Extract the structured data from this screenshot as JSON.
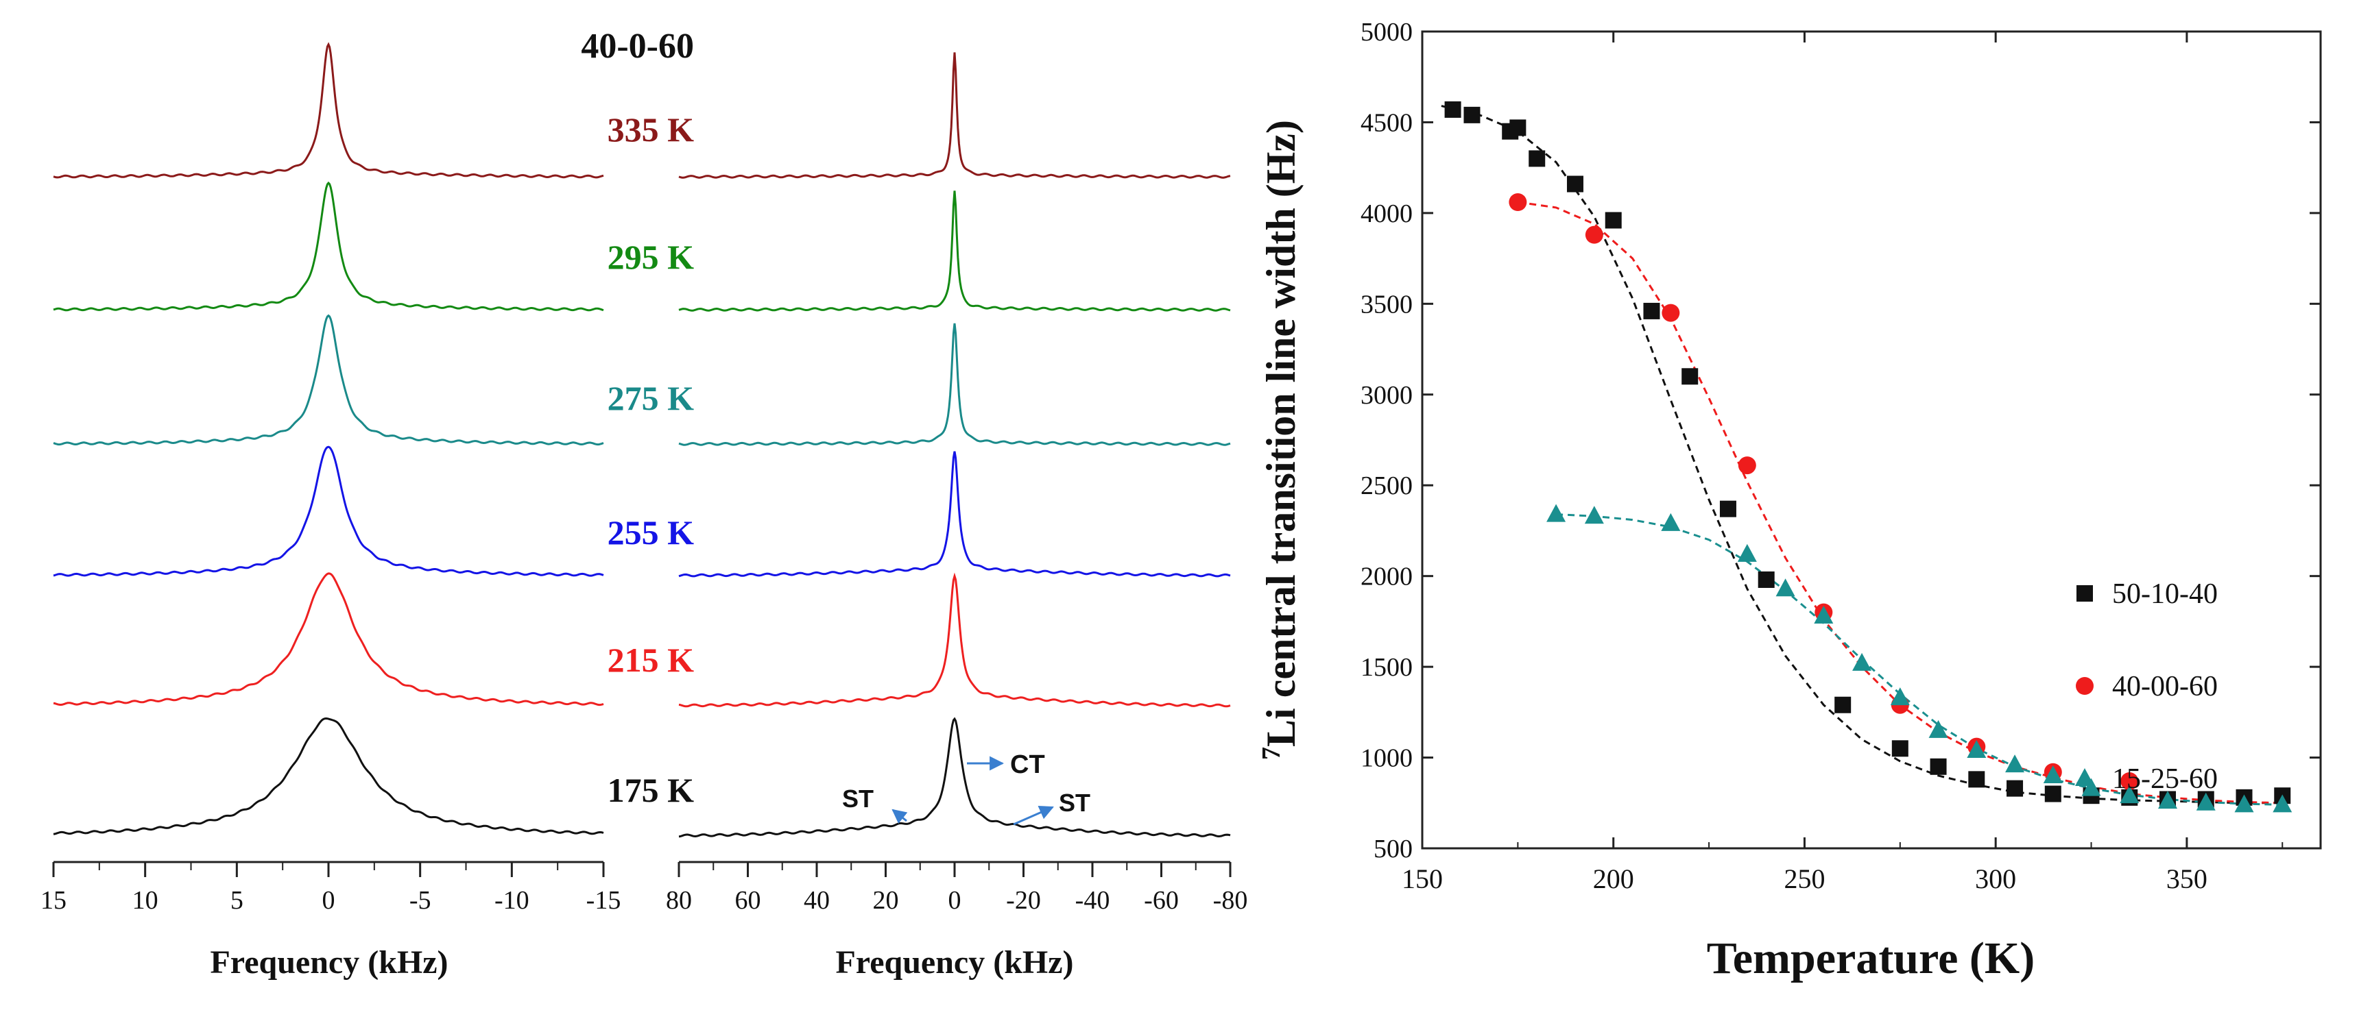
{
  "panels": {
    "sample_label": "40-0-60",
    "spectra": [
      {
        "label": "335 K",
        "color": "#8b1a1a",
        "width_narrow": 0.45,
        "tail_narrow": 0.02,
        "width_wide": 0.55,
        "tail_wide": 0.01
      },
      {
        "label": "295 K",
        "color": "#138a13",
        "width_narrow": 0.6,
        "tail_narrow": 0.02,
        "width_wide": 0.6,
        "tail_wide": 0.01
      },
      {
        "label": "275 K",
        "color": "#1a8a8a",
        "width_narrow": 0.75,
        "tail_narrow": 0.02,
        "width_wide": 0.75,
        "tail_wide": 0.01
      },
      {
        "label": "255 K",
        "color": "#1414e6",
        "width_narrow": 1.0,
        "tail_narrow": 0.025,
        "width_wide": 0.95,
        "tail_wide": 0.04
      },
      {
        "label": "215 K",
        "color": "#ee2020",
        "width_narrow": 1.7,
        "tail_narrow": 0.03,
        "width_wide": 1.3,
        "tail_wide": 0.06
      },
      {
        "label": "175 K",
        "color": "#111111",
        "width_narrow": 2.3,
        "tail_narrow": 0.04,
        "width_wide": 1.8,
        "tail_wide": 0.09
      }
    ],
    "left": {
      "xlabel": "Frequency (kHz)",
      "ticks": [
        "15",
        "10",
        "5",
        "0",
        "-5",
        "-10",
        "-15"
      ],
      "tick_values": [
        15,
        10,
        5,
        0,
        -5,
        -10,
        -15
      ],
      "xlim": [
        15,
        -15
      ]
    },
    "middle": {
      "xlabel": "Frequency (kHz)",
      "ticks": [
        "80",
        "60",
        "40",
        "20",
        "0",
        "-20",
        "-40",
        "-60",
        "-80"
      ],
      "tick_values": [
        80,
        60,
        40,
        20,
        0,
        -20,
        -40,
        -60,
        -80
      ],
      "xlim": [
        80,
        -80
      ]
    },
    "annotations": {
      "ct": "CT",
      "st_left": "ST",
      "st_right": "ST",
      "arrow_color": "#3a7fd0"
    }
  },
  "chart_data": {
    "type": "scatter",
    "title": "",
    "xlabel": "Temperature (K)",
    "ylabel_sup": "7",
    "ylabel": "Li central transition line width (Hz)",
    "xlim": [
      150,
      385
    ],
    "ylim": [
      500,
      5000
    ],
    "xticks": [
      150,
      200,
      250,
      300,
      350
    ],
    "yticks": [
      500,
      1000,
      1500,
      2000,
      2500,
      3000,
      3500,
      4000,
      4500,
      5000
    ],
    "legend_position": "right",
    "series": [
      {
        "name": "50-10-40",
        "marker": "square",
        "color": "#111111",
        "x": [
          158,
          163,
          173,
          175,
          180,
          190,
          200,
          210,
          220,
          230,
          240,
          260,
          275,
          285,
          295,
          305,
          315,
          325,
          335,
          345,
          355,
          365,
          375
        ],
        "y": [
          4570,
          4540,
          4450,
          4470,
          4300,
          4160,
          3960,
          3460,
          3100,
          2370,
          1980,
          1290,
          1050,
          950,
          880,
          830,
          800,
          790,
          780,
          770,
          770,
          780,
          790
        ],
        "fit_x": [
          155,
          165,
          175,
          185,
          195,
          205,
          215,
          225,
          235,
          245,
          255,
          265,
          275,
          285,
          295,
          305,
          315,
          325,
          335,
          345,
          355,
          365,
          375
        ],
        "fit_y": [
          4590,
          4540,
          4450,
          4280,
          3980,
          3530,
          2970,
          2420,
          1930,
          1560,
          1290,
          1100,
          980,
          900,
          850,
          810,
          790,
          775,
          765,
          760,
          755,
          750,
          750
        ]
      },
      {
        "name": "40-00-60",
        "marker": "circle",
        "color": "#ee1c1c",
        "x": [
          175,
          195,
          215,
          235,
          255,
          275,
          295,
          315,
          335
        ],
        "y": [
          4060,
          3880,
          3450,
          2610,
          1800,
          1290,
          1060,
          920,
          870
        ],
        "fit_x": [
          175,
          185,
          195,
          205,
          215,
          225,
          235,
          245,
          255,
          265,
          275,
          285,
          295,
          305,
          315,
          325,
          335,
          345,
          355,
          365,
          375
        ],
        "fit_y": [
          4060,
          4030,
          3940,
          3750,
          3420,
          2980,
          2520,
          2100,
          1760,
          1500,
          1290,
          1140,
          1030,
          950,
          890,
          840,
          800,
          780,
          765,
          755,
          750
        ]
      },
      {
        "name": "15-25-60",
        "marker": "triangle",
        "color": "#1a8f8f",
        "x": [
          185,
          195,
          215,
          235,
          245,
          255,
          265,
          275,
          285,
          295,
          305,
          315,
          325,
          335,
          345,
          355,
          365,
          375
        ],
        "y": [
          2340,
          2330,
          2290,
          2120,
          1930,
          1780,
          1520,
          1330,
          1150,
          1040,
          960,
          900,
          830,
          790,
          760,
          750,
          740,
          740
        ],
        "fit_x": [
          185,
          195,
          205,
          215,
          225,
          235,
          245,
          255,
          265,
          275,
          285,
          295,
          305,
          315,
          325,
          335,
          345,
          355,
          365,
          375
        ],
        "fit_y": [
          2340,
          2330,
          2310,
          2270,
          2200,
          2080,
          1920,
          1740,
          1540,
          1350,
          1180,
          1050,
          950,
          880,
          830,
          795,
          770,
          755,
          745,
          740
        ]
      }
    ]
  }
}
